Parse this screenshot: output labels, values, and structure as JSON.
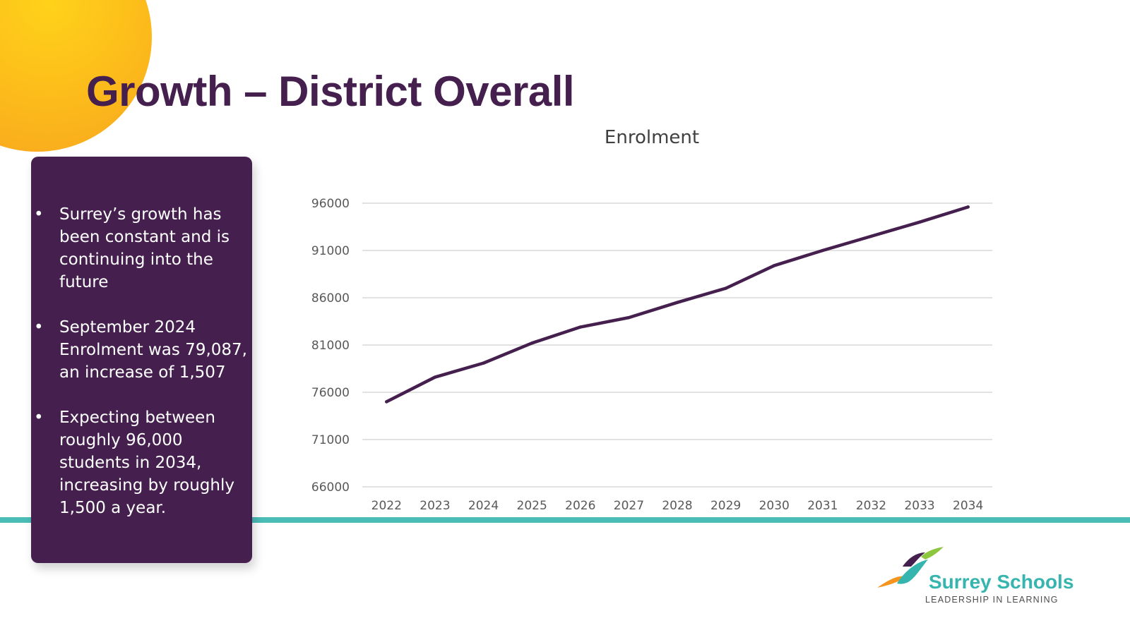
{
  "slide": {
    "title": "Growth – District Overall",
    "bullets": [
      "Surrey’s growth has been constant and is continuing into the future",
      "September 2024 Enrolment was 79,087, an increase of 1,507",
      "Expecting between roughly 96,000 students in 2034, increasing by roughly 1,500 a year."
    ],
    "bullet_glyph": "•",
    "colors": {
      "title": "#45204f",
      "panel": "#45204f",
      "accent_line": "#4bbdb7",
      "sun": "#fcb91b"
    }
  },
  "logo": {
    "name": "Surrey Schools",
    "tagline": "LEADERSHIP IN LEARNING"
  },
  "chart_data": {
    "type": "line",
    "title": "Enrolment",
    "xlabel": "",
    "ylabel": "",
    "categories": [
      "2022",
      "2023",
      "2024",
      "2025",
      "2026",
      "2027",
      "2028",
      "2029",
      "2030",
      "2031",
      "2032",
      "2033",
      "2034"
    ],
    "series": [
      {
        "values": [
          75000,
          77600,
          79087,
          81200,
          82900,
          83900,
          85500,
          87000,
          89400,
          91000,
          92500,
          94000,
          95600
        ],
        "color": "#45204f"
      }
    ],
    "yticks": [
      66000,
      71000,
      76000,
      81000,
      86000,
      91000,
      96000
    ],
    "ylim": [
      66000,
      96000
    ],
    "grid": true,
    "legend": "none"
  }
}
